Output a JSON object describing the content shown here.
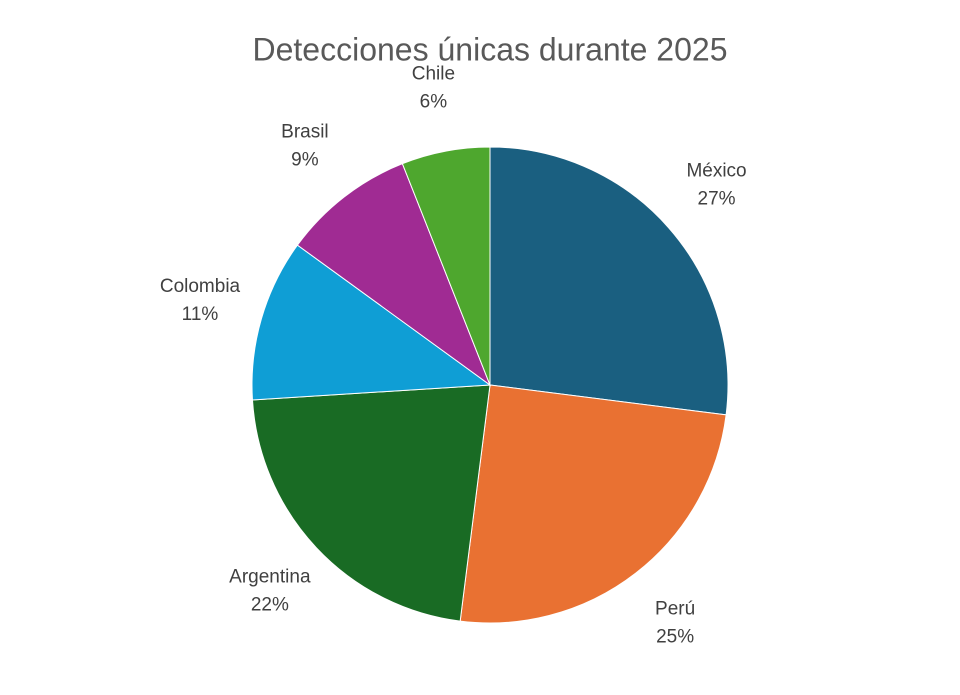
{
  "chart_data": {
    "type": "pie",
    "title": "Detecciones únicas durante 2025",
    "categories": [
      "México",
      "Perú",
      "Argentina",
      "Colombia",
      "Brasil",
      "Chile"
    ],
    "values": [
      27,
      25,
      22,
      11,
      9,
      6
    ],
    "value_labels": [
      "27%",
      "25%",
      "22%",
      "11%",
      "9%",
      "6%"
    ],
    "colors": [
      "#1a5f80",
      "#e97132",
      "#196b24",
      "#0f9ed5",
      "#a02b93",
      "#4ea72e"
    ]
  }
}
